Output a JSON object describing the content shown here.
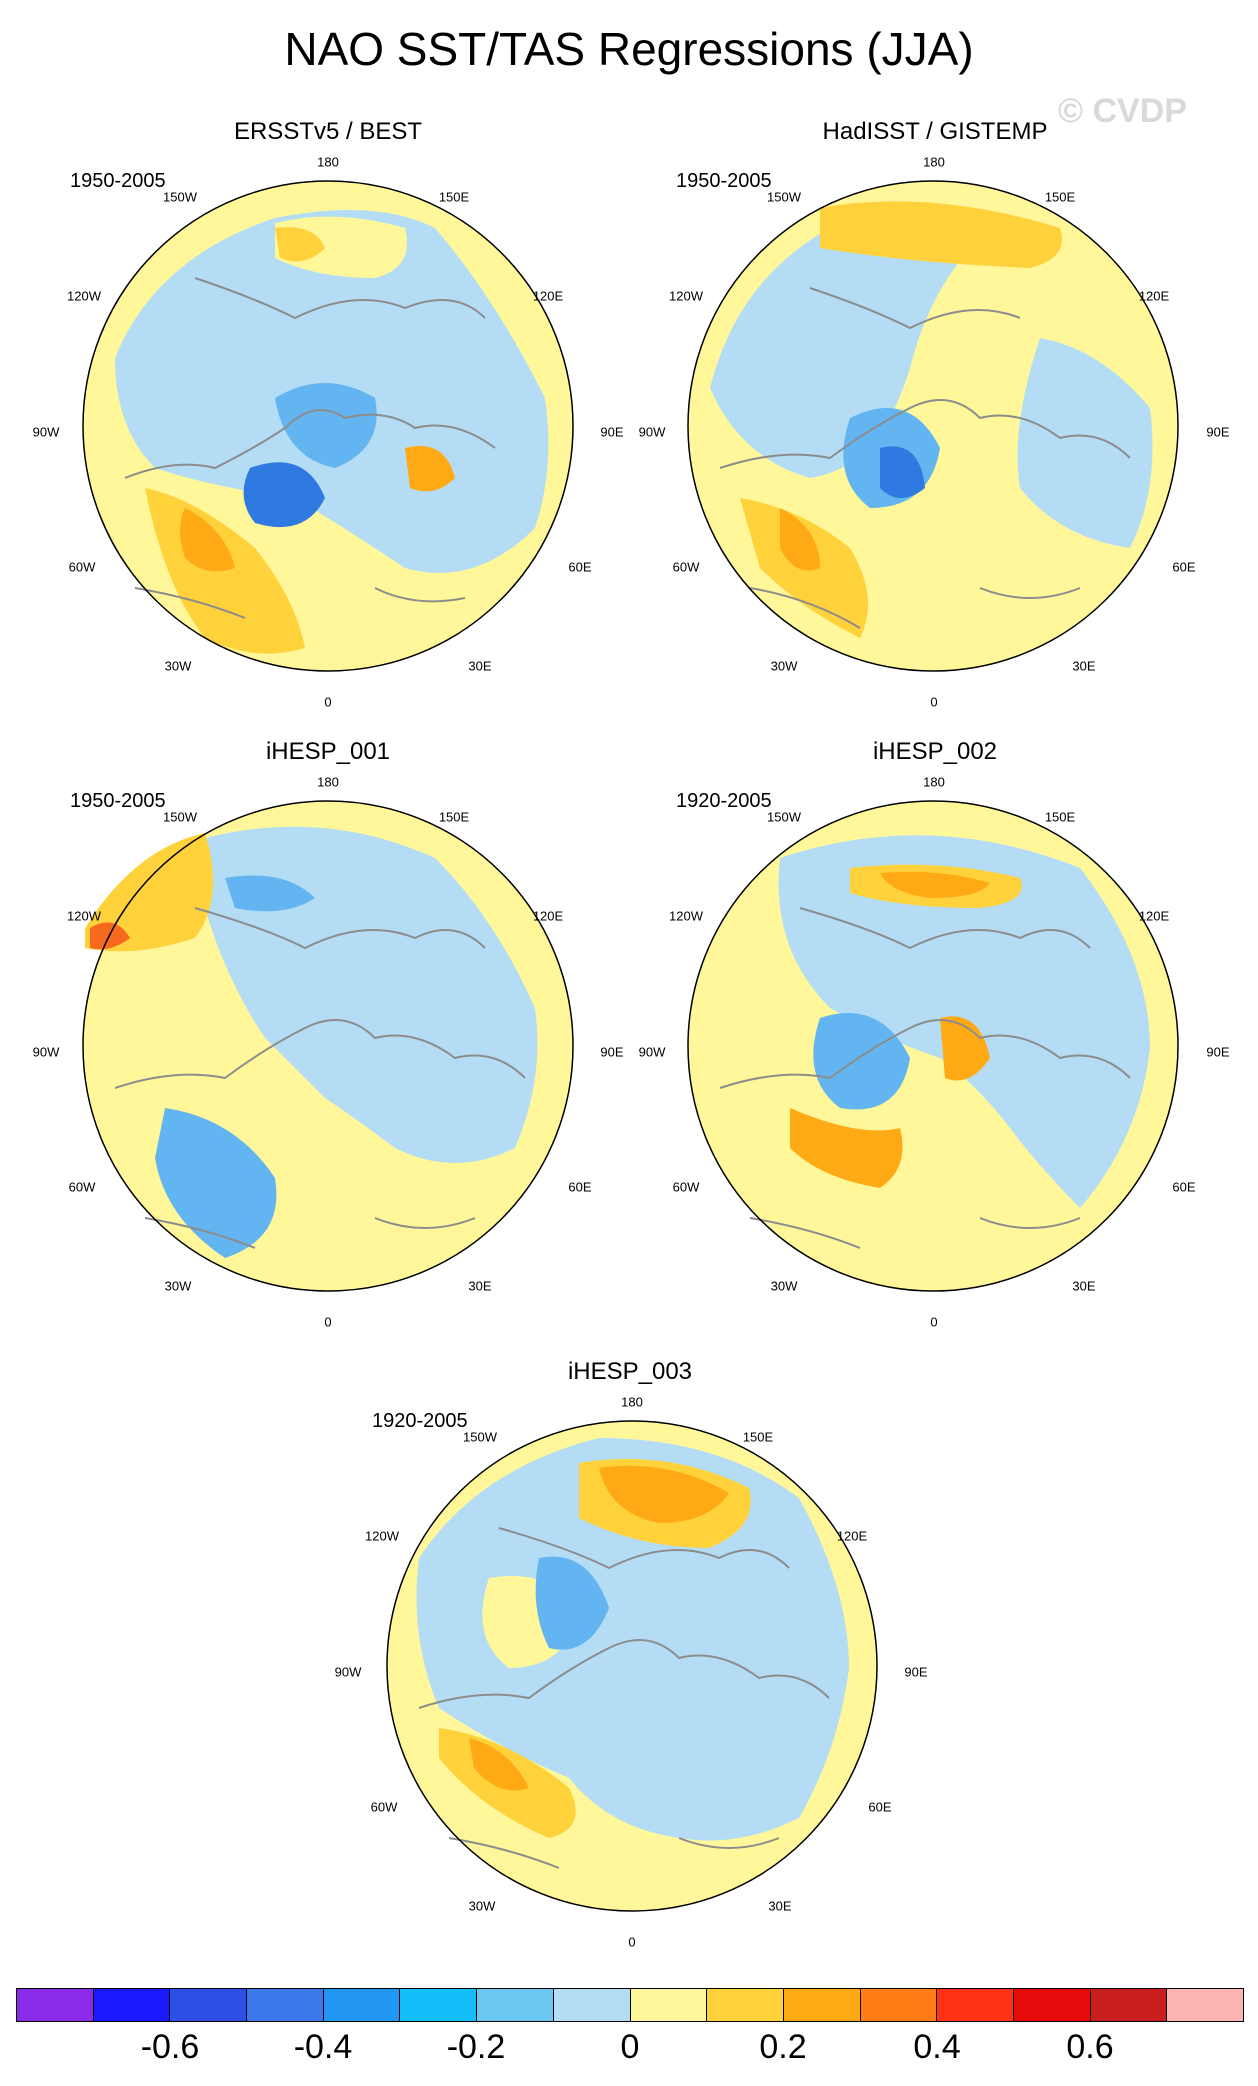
{
  "title": "NAO SST/TAS Regressions (JJA)",
  "watermark": "© CVDP",
  "colors": {
    "ocean_pos": "#fff79a",
    "ocean_neg": "#b4ddf5",
    "mid_blue": "#62b5f0",
    "deep_blue": "#2f7ae0",
    "gold": "#ffd23c",
    "orange": "#ffaa14",
    "red_orange": "#f56a1e",
    "coast": "#8c8c8c"
  },
  "panels": [
    {
      "title": "ERSSTv5 / BEST",
      "period": "1950-2005",
      "lon_labels": [
        "180",
        "150E",
        "120E",
        "90E",
        "60E",
        "30E",
        "0",
        "30W",
        "60W",
        "90W",
        "120W",
        "150W"
      ]
    },
    {
      "title": "HadISST / GISTEMP",
      "period": "1950-2005",
      "lon_labels": [
        "180",
        "150E",
        "120E",
        "90E",
        "60E",
        "30E",
        "0",
        "30W",
        "60W",
        "90W",
        "120W",
        "150W"
      ]
    },
    {
      "title": "iHESP_001",
      "period": "1950-2005",
      "lon_labels": [
        "180",
        "150E",
        "120E",
        "90E",
        "60E",
        "30E",
        "0",
        "30W",
        "60W",
        "90W",
        "120W",
        "150W"
      ]
    },
    {
      "title": "iHESP_002",
      "period": "1920-2005",
      "lon_labels": [
        "180",
        "150E",
        "120E",
        "90E",
        "60E",
        "30E",
        "0",
        "30W",
        "60W",
        "90W",
        "120W",
        "150W"
      ]
    },
    {
      "title": "iHESP_003",
      "period": "1920-2005",
      "lon_labels": [
        "180",
        "150E",
        "120E",
        "90E",
        "60E",
        "30E",
        "0",
        "30W",
        "60W",
        "90W",
        "120W",
        "150W"
      ]
    }
  ],
  "colorbar": {
    "colors": [
      "#8a2be8",
      "#1a1aff",
      "#2e4fe6",
      "#3a78ec",
      "#2196f3",
      "#14bef8",
      "#6cc6f2",
      "#b4ddf5",
      "#fff79a",
      "#ffd23c",
      "#ffaa14",
      "#ff7d14",
      "#ff3214",
      "#e60a0a",
      "#c81e1e",
      "#ffb4b4"
    ],
    "labels": [
      "-0.6",
      "-0.4",
      "-0.2",
      "0",
      "0.2",
      "0.4",
      "0.6"
    ]
  }
}
